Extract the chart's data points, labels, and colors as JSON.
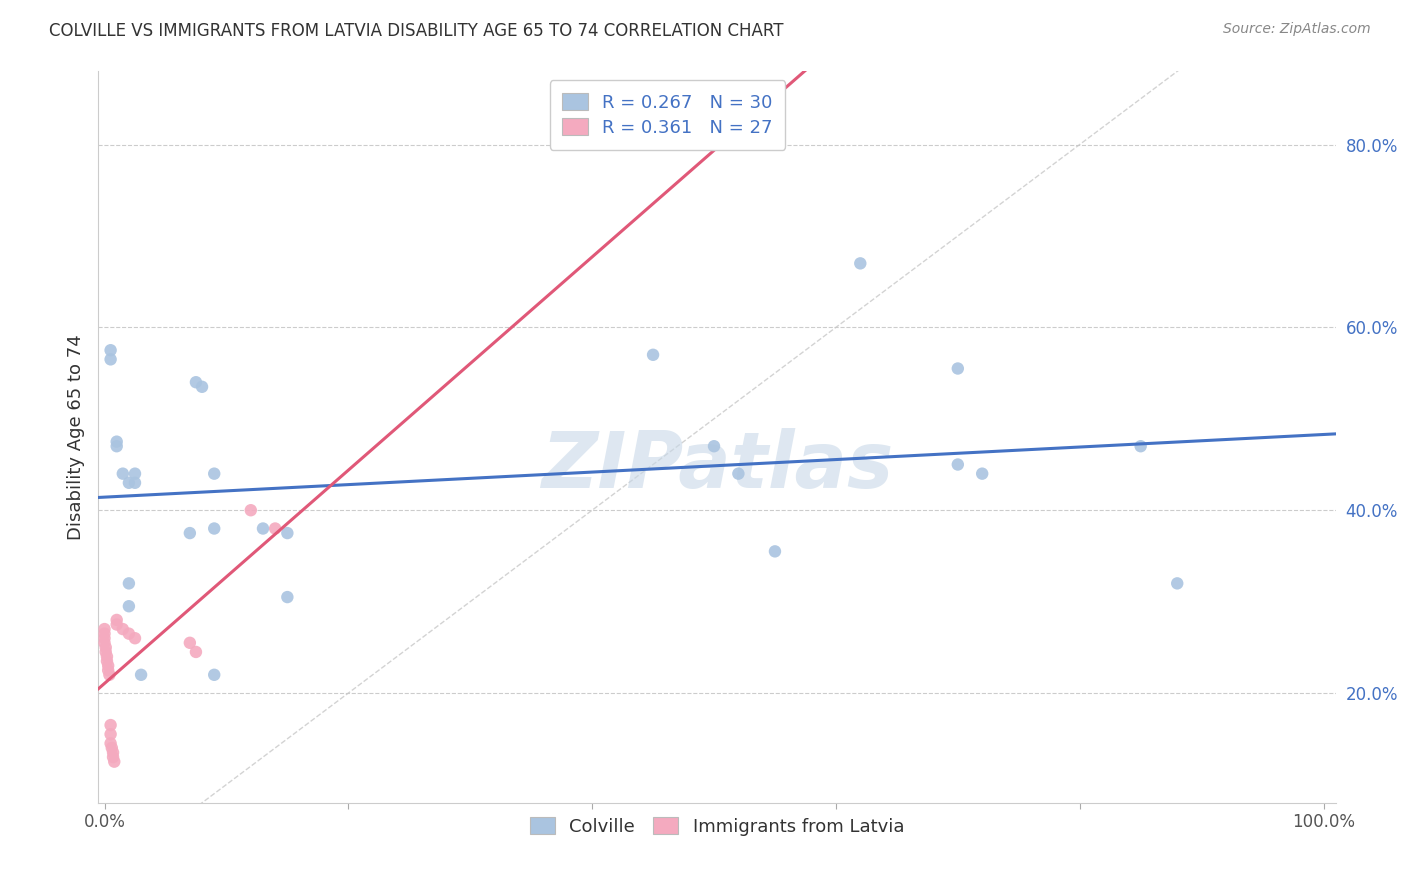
{
  "title": "COLVILLE VS IMMIGRANTS FROM LATVIA DISABILITY AGE 65 TO 74 CORRELATION CHART",
  "source": "Source: ZipAtlas.com",
  "ylabel": "Disability Age 65 to 74",
  "y_ticks": [
    0.2,
    0.4,
    0.6,
    0.8
  ],
  "y_tick_labels": [
    "20.0%",
    "40.0%",
    "60.0%",
    "80.0%"
  ],
  "colville_color": "#aac4e0",
  "colville_line_color": "#4472c4",
  "latvia_color": "#f4aabf",
  "latvia_line_color": "#e05878",
  "legend_box_color_colville": "#aac4e0",
  "legend_box_color_latvia": "#f4aabf",
  "legend_text_color": "#4472c4",
  "R_colville": 0.267,
  "N_colville": 30,
  "R_latvia": 0.361,
  "N_latvia": 27,
  "colville_x": [
    0.005,
    0.005,
    0.01,
    0.01,
    0.015,
    0.02,
    0.02,
    0.02,
    0.025,
    0.025,
    0.03,
    0.07,
    0.075,
    0.08,
    0.09,
    0.09,
    0.09,
    0.13,
    0.15,
    0.15,
    0.45,
    0.5,
    0.52,
    0.55,
    0.62,
    0.7,
    0.7,
    0.72,
    0.85,
    0.88
  ],
  "colville_y": [
    0.575,
    0.565,
    0.475,
    0.47,
    0.44,
    0.43,
    0.32,
    0.295,
    0.44,
    0.43,
    0.22,
    0.375,
    0.54,
    0.535,
    0.44,
    0.38,
    0.22,
    0.38,
    0.375,
    0.305,
    0.57,
    0.47,
    0.44,
    0.355,
    0.67,
    0.555,
    0.45,
    0.44,
    0.47,
    0.32
  ],
  "latvia_x": [
    0.0,
    0.0,
    0.0,
    0.0,
    0.001,
    0.001,
    0.002,
    0.002,
    0.003,
    0.003,
    0.004,
    0.005,
    0.005,
    0.005,
    0.006,
    0.007,
    0.007,
    0.008,
    0.01,
    0.01,
    0.015,
    0.02,
    0.025,
    0.07,
    0.075,
    0.12,
    0.14
  ],
  "latvia_y": [
    0.27,
    0.265,
    0.26,
    0.255,
    0.25,
    0.245,
    0.24,
    0.235,
    0.23,
    0.225,
    0.22,
    0.165,
    0.155,
    0.145,
    0.14,
    0.135,
    0.13,
    0.125,
    0.28,
    0.275,
    0.27,
    0.265,
    0.26,
    0.255,
    0.245,
    0.4,
    0.38
  ],
  "background_color": "#ffffff",
  "grid_color": "#cccccc",
  "diagonal_line_color": "#c8c8c8",
  "watermark_text": "ZIPatlas",
  "watermark_color": "#c8d8e8",
  "marker_size": 80,
  "xlim": [
    -0.005,
    1.01
  ],
  "ylim": [
    0.08,
    0.88
  ]
}
